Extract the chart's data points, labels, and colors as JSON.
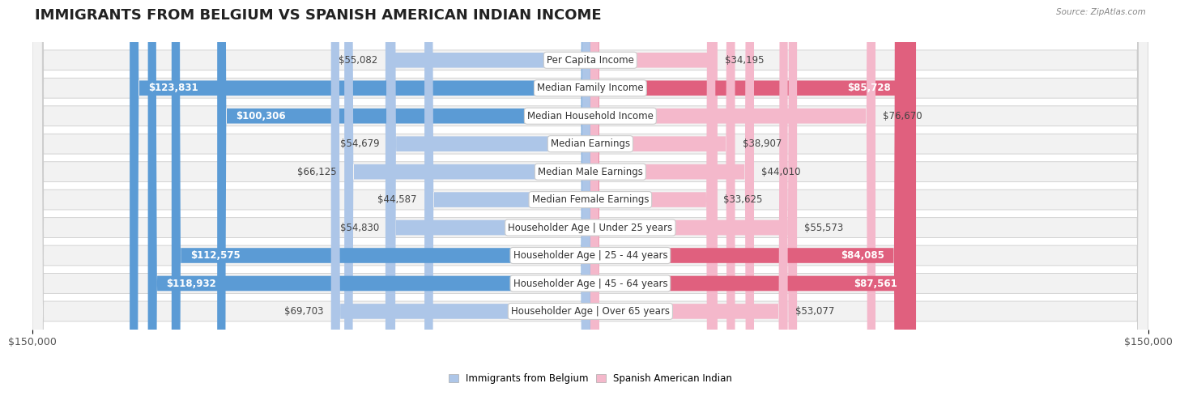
{
  "title": "IMMIGRANTS FROM BELGIUM VS SPANISH AMERICAN INDIAN INCOME",
  "source": "Source: ZipAtlas.com",
  "categories": [
    "Per Capita Income",
    "Median Family Income",
    "Median Household Income",
    "Median Earnings",
    "Median Male Earnings",
    "Median Female Earnings",
    "Householder Age | Under 25 years",
    "Householder Age | 25 - 44 years",
    "Householder Age | 45 - 64 years",
    "Householder Age | Over 65 years"
  ],
  "belgium_values": [
    55082,
    123831,
    100306,
    54679,
    66125,
    44587,
    54830,
    112575,
    118932,
    69703
  ],
  "spanish_values": [
    34195,
    85728,
    76670,
    38907,
    44010,
    33625,
    55573,
    84085,
    87561,
    53077
  ],
  "belgium_color_light": "#adc6e8",
  "belgium_color_dark": "#5b9bd5",
  "spanish_color_light": "#f4b8cb",
  "spanish_color_dark": "#e0607e",
  "max_value": 150000,
  "belgium_label": "Immigrants from Belgium",
  "spanish_label": "Spanish American Indian",
  "background_color": "#ffffff",
  "row_bg_color": "#f2f2f2",
  "title_fontsize": 13,
  "label_fontsize": 8.5,
  "value_fontsize": 8.5,
  "axis_fontsize": 9,
  "dark_threshold": 80000
}
